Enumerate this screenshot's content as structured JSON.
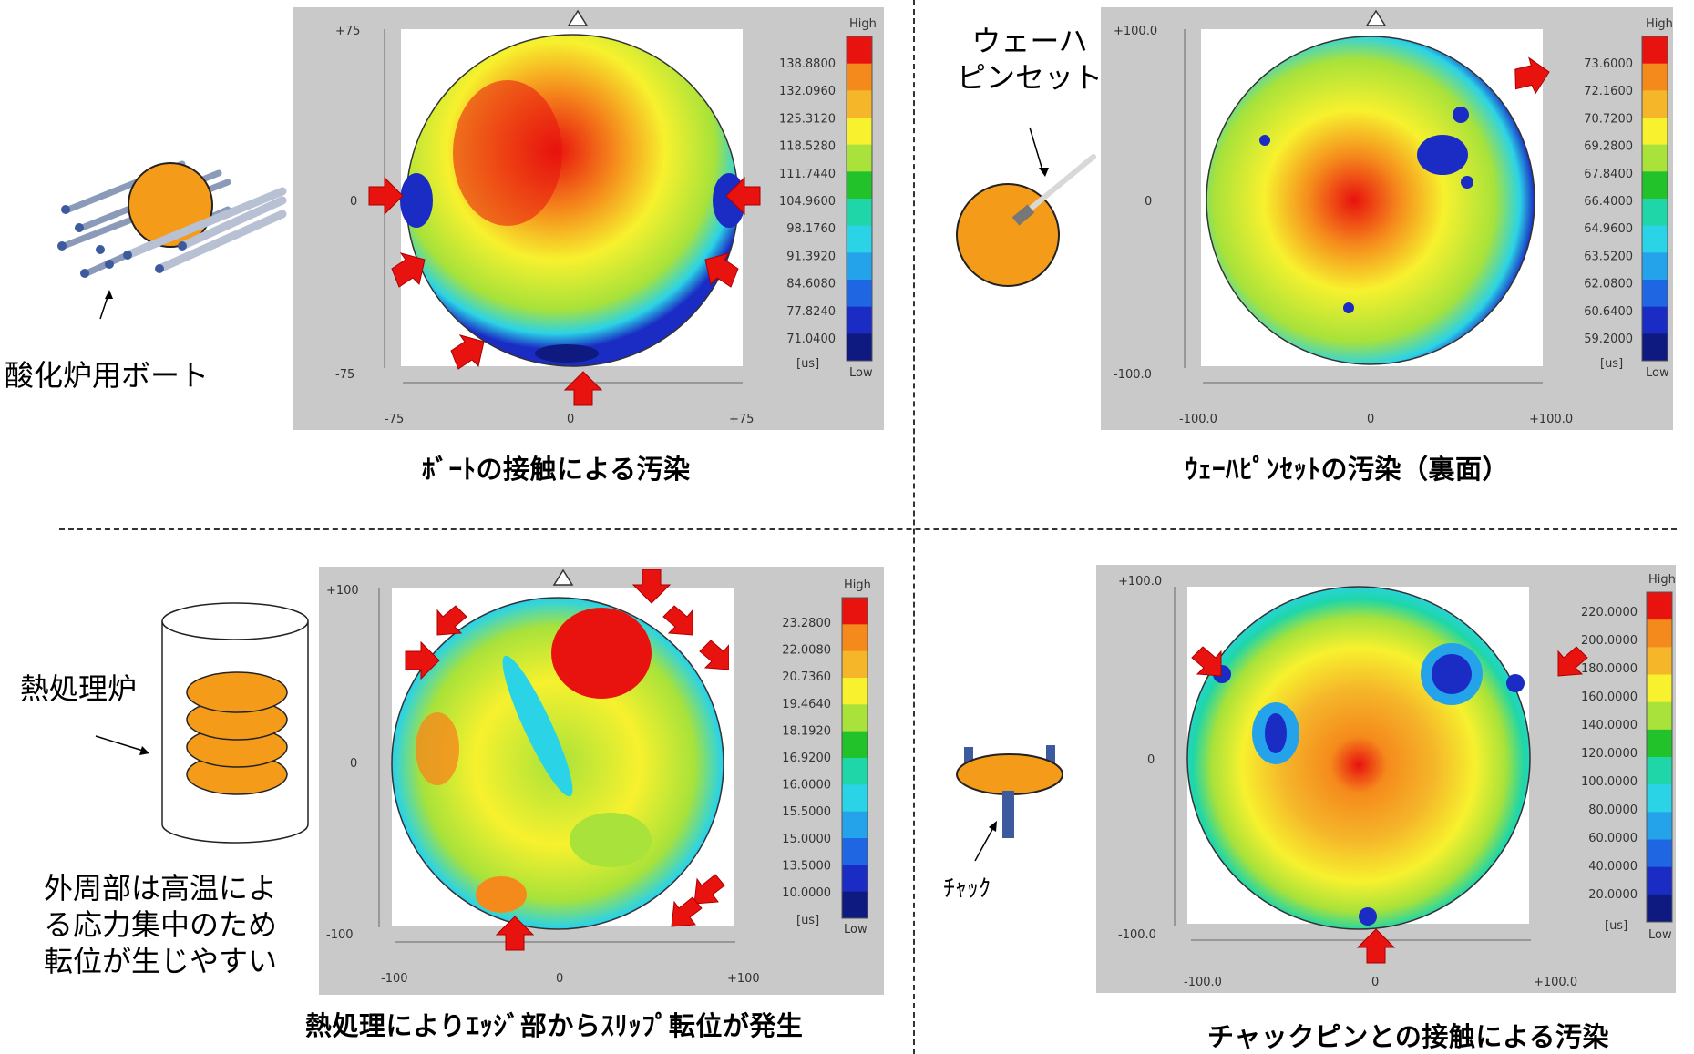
{
  "panels": [
    {
      "id": "boat",
      "caption": "ﾎﾞｰﾄの接触による汚染",
      "side_label": "酸化炉用ボート",
      "axis": {
        "x_min": "-75",
        "x_mid": "0",
        "x_max": "+75",
        "y_max": "+75",
        "y_mid": "0",
        "y_min": "-75"
      },
      "colorbar": {
        "high": "High",
        "low": "Low",
        "unit": "[us]",
        "ticks": [
          "138.8800",
          "132.0960",
          "125.3120",
          "118.5280",
          "111.7440",
          "104.9600",
          "98.1760",
          "91.3920",
          "84.6080",
          "77.8240",
          "71.0400"
        ]
      }
    },
    {
      "id": "tweezer",
      "caption": "ｳｪｰﾊﾋﾟﾝｾｯﾄの汚染（裏面）",
      "side_label_lines": [
        "ウェーハ",
        "ピンセット"
      ],
      "axis": {
        "x_min": "-100.0",
        "x_mid": "0",
        "x_max": "+100.0",
        "y_max": "+100.0",
        "y_mid": "0",
        "y_min": "-100.0"
      },
      "colorbar": {
        "high": "High",
        "low": "Low",
        "unit": "[us]",
        "ticks": [
          "73.6000",
          "72.1600",
          "70.7200",
          "69.2800",
          "67.8400",
          "66.4000",
          "64.9600",
          "63.5200",
          "62.0800",
          "60.6400",
          "59.2000"
        ]
      }
    },
    {
      "id": "furnace",
      "caption": "熱処理によりｴｯｼﾞ部からｽﾘｯﾌﾟ転位が発生",
      "side_label": "熱処理炉",
      "note_lines": [
        "外周部は高温によ",
        "る応力集中のため",
        "転位が生じやすい"
      ],
      "axis": {
        "x_min": "-100",
        "x_mid": "0",
        "x_max": "+100",
        "y_max": "+100",
        "y_mid": "0",
        "y_min": "-100"
      },
      "colorbar": {
        "high": "High",
        "low": "Low",
        "unit": "[us]",
        "ticks": [
          "23.2800",
          "22.0080",
          "20.7360",
          "19.4640",
          "18.1920",
          "16.9200",
          "16.0000",
          "15.5000",
          "15.0000",
          "13.5000",
          "10.0000"
        ]
      }
    },
    {
      "id": "chuck",
      "caption": "チャックピンとの接触による汚染",
      "side_label": "ﾁｬｯｸ",
      "axis": {
        "x_min": "-100.0",
        "x_mid": "0",
        "x_max": "+100.0",
        "y_max": "+100.0",
        "y_mid": "0",
        "y_min": "-100.0"
      },
      "colorbar": {
        "high": "High",
        "low": "Low",
        "unit": "[us]",
        "ticks": [
          "220.0000",
          "200.0000",
          "180.0000",
          "160.0000",
          "140.0000",
          "120.0000",
          "100.0000",
          "80.0000",
          "60.0000",
          "40.0000",
          "20.0000"
        ]
      }
    }
  ],
  "chart_data": [
    {
      "type": "heatmap",
      "title": "ﾎﾞｰﾄの接触による汚染",
      "xlim": [
        -75,
        75
      ],
      "ylim": [
        -75,
        75
      ],
      "unit": "us",
      "colorbar_values": [
        138.88,
        132.096,
        125.312,
        118.528,
        111.744,
        104.96,
        98.176,
        91.392,
        84.608,
        77.824,
        71.04
      ]
    },
    {
      "type": "heatmap",
      "title": "ｳｪｰﾊﾋﾟﾝｾｯﾄの汚染（裏面）",
      "xlim": [
        -100,
        100
      ],
      "ylim": [
        -100,
        100
      ],
      "unit": "us",
      "colorbar_values": [
        73.6,
        72.16,
        70.72,
        69.28,
        67.84,
        66.4,
        64.96,
        63.52,
        62.08,
        60.64,
        59.2
      ]
    },
    {
      "type": "heatmap",
      "title": "熱処理によりｴｯｼﾞ部からｽﾘｯﾌﾟ転位が発生",
      "xlim": [
        -100,
        100
      ],
      "ylim": [
        -100,
        100
      ],
      "unit": "us",
      "colorbar_values": [
        23.28,
        22.008,
        20.736,
        19.464,
        18.192,
        16.92,
        16.0,
        15.5,
        15.0,
        13.5,
        10.0
      ]
    },
    {
      "type": "heatmap",
      "title": "チャックピンとの接触による汚染",
      "xlim": [
        -100,
        100
      ],
      "ylim": [
        -100,
        100
      ],
      "unit": "us",
      "colorbar_values": [
        220,
        200,
        180,
        160,
        140,
        120,
        100,
        80,
        60,
        40,
        20
      ]
    }
  ],
  "colors": {
    "scale": [
      "#e8120e",
      "#f58a1c",
      "#f5b62a",
      "#f7f12e",
      "#a8e23a",
      "#22c22b",
      "#1fd6a8",
      "#2bd3e6",
      "#24a3ea",
      "#1f66e2",
      "#1a2cc4",
      "#0f1a80"
    ],
    "wafer_orange": "#f49b1a",
    "arrow_red": "#e8120e"
  }
}
